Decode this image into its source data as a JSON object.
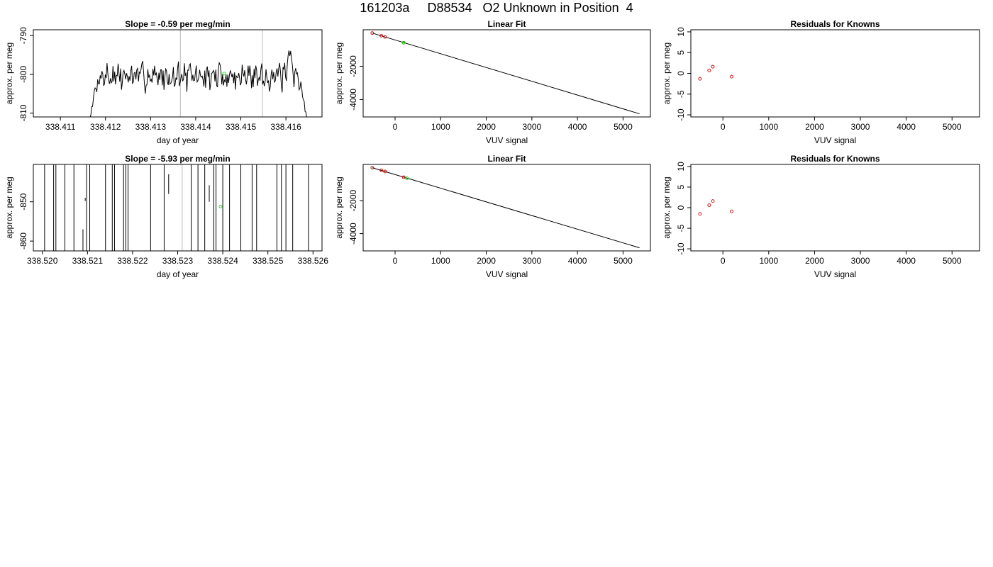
{
  "page_title": "161203a     D88534   O2 Unknown in Position  4",
  "colors": {
    "line": "#000000",
    "known_points": "#cc0000",
    "unknown_point": "#00dd00",
    "marker_lines": "#bbbbbb"
  },
  "chart_data": [
    {
      "id": "p1",
      "type": "line",
      "title": "Slope =  -0.59  per meg/min",
      "xlabel": "day of year",
      "ylabel": "approx. per meg",
      "xlim": [
        338.4104,
        338.4168
      ],
      "ylim": [
        -811,
        -788.5
      ],
      "xticks": [
        338.411,
        338.412,
        338.413,
        338.414,
        338.415,
        338.416
      ],
      "xtick_labels": [
        "338.411",
        "338.412",
        "338.413",
        "338.414",
        "338.415",
        "338.416"
      ],
      "yticks": [
        -790,
        -800,
        -810
      ],
      "ytick_labels": [
        "-790",
        "-800",
        "-810"
      ],
      "vlines": [
        338.41366,
        338.41548
      ],
      "series_span": [
        338.4116,
        338.4165
      ],
      "trace_shape": "noisy-plateau",
      "trace_seed": 7,
      "trace_base": -800.5,
      "trace_amp": 2.6,
      "unknown_point": [
        338.41463,
        -799.8
      ]
    },
    {
      "id": "p2",
      "type": "line",
      "title": "Linear Fit",
      "xlabel": "VUV signal",
      "ylabel": "approx. per meg",
      "xlim": [
        -700,
        5600
      ],
      "ylim": [
        -5050,
        200
      ],
      "xticks": [
        0,
        1000,
        2000,
        3000,
        4000,
        5000
      ],
      "xtick_labels": [
        "0",
        "1000",
        "2000",
        "3000",
        "4000",
        "5000"
      ],
      "yticks": [
        -2000,
        -4000
      ],
      "ytick_labels": [
        "-2000",
        "-4000"
      ],
      "fit_line": [
        [
          -500,
          0
        ],
        [
          5360,
          -4860
        ]
      ],
      "known_points": [
        [
          -500,
          0
        ],
        [
          -300,
          -160
        ],
        [
          -220,
          -230
        ],
        [
          190,
          -580
        ]
      ],
      "unknown_point": [
        190,
        -580
      ]
    },
    {
      "id": "p3",
      "type": "scatter",
      "title": "Residuals for Knowns",
      "xlabel": "VUV signal",
      "ylabel": "approx. per meg",
      "xlim": [
        -700,
        5600
      ],
      "ylim": [
        -10.5,
        10.5
      ],
      "xticks": [
        0,
        1000,
        2000,
        3000,
        4000,
        5000
      ],
      "xtick_labels": [
        "0",
        "1000",
        "2000",
        "3000",
        "4000",
        "5000"
      ],
      "yticks": [
        10,
        5,
        0,
        -5,
        -10
      ],
      "ytick_labels": [
        "10",
        "5",
        "0",
        "-5",
        "-10"
      ],
      "known_points": [
        [
          -500,
          -1.3
        ],
        [
          -300,
          0.7
        ],
        [
          -220,
          1.6
        ],
        [
          190,
          -0.8
        ]
      ]
    },
    {
      "id": "p4",
      "type": "line",
      "title": "Slope =  -5.93  per meg/min",
      "xlabel": "day of year",
      "ylabel": "approx. per meg",
      "xlim": [
        338.5198,
        338.5262
      ],
      "ylim": [
        -862.5,
        -840.5
      ],
      "xticks": [
        338.52,
        338.521,
        338.522,
        338.523,
        338.524,
        338.525,
        338.526
      ],
      "xtick_labels": [
        "338.520",
        "338.521",
        "338.522",
        "338.523",
        "338.524",
        "338.525",
        "338.526"
      ],
      "yticks": [
        -850,
        -860
      ],
      "ytick_labels": [
        "-850",
        "-860"
      ],
      "vlines": [
        338.5231
      ],
      "spike_x": [
        338.52005,
        338.52025,
        338.5203,
        338.5205,
        338.5207,
        338.52098,
        338.52105,
        338.5214,
        338.52155,
        338.5216,
        338.5218,
        338.52185,
        338.5219,
        338.5224,
        338.5227,
        338.5233,
        338.52345,
        338.5236,
        338.5238,
        338.52385,
        338.524,
        338.52415,
        338.5244,
        338.52465,
        338.52475,
        338.5252,
        338.5253,
        338.5254,
        338.52555,
        338.5259
      ],
      "partial_spikes": [
        [
          338.5209,
          -857,
          -862.5
        ],
        [
          338.52095,
          -849,
          -849.8
        ],
        [
          338.5228,
          -843,
          -848
        ],
        [
          338.5237,
          -850,
          -845.8
        ]
      ],
      "unknown_point": [
        338.52395,
        -851.2
      ]
    },
    {
      "id": "p5",
      "type": "line",
      "title": "Linear Fit",
      "xlabel": "VUV signal",
      "ylabel": "approx. per meg",
      "xlim": [
        -700,
        5600
      ],
      "ylim": [
        -5050,
        200
      ],
      "xticks": [
        0,
        1000,
        2000,
        3000,
        4000,
        5000
      ],
      "xtick_labels": [
        "0",
        "1000",
        "2000",
        "3000",
        "4000",
        "5000"
      ],
      "yticks": [
        -2000,
        -4000
      ],
      "ytick_labels": [
        "-2000",
        "-4000"
      ],
      "fit_line": [
        [
          -500,
          0
        ],
        [
          5360,
          -4860
        ]
      ],
      "known_points": [
        [
          -500,
          0
        ],
        [
          -300,
          -160
        ],
        [
          -220,
          -230
        ],
        [
          190,
          -580
        ]
      ],
      "unknown_point": [
        260,
        -640
      ]
    },
    {
      "id": "p6",
      "type": "scatter",
      "title": "Residuals for Knowns",
      "xlabel": "VUV signal",
      "ylabel": "approx. per meg",
      "xlim": [
        -700,
        5600
      ],
      "ylim": [
        -10.5,
        10.5
      ],
      "xticks": [
        0,
        1000,
        2000,
        3000,
        4000,
        5000
      ],
      "xtick_labels": [
        "0",
        "1000",
        "2000",
        "3000",
        "4000",
        "5000"
      ],
      "yticks": [
        10,
        5,
        0,
        -5,
        -10
      ],
      "ytick_labels": [
        "10",
        "5",
        "0",
        "-5",
        "-10"
      ],
      "known_points": [
        [
          -500,
          -1.5
        ],
        [
          -300,
          0.6
        ],
        [
          -220,
          1.6
        ],
        [
          190,
          -0.9
        ]
      ]
    }
  ]
}
